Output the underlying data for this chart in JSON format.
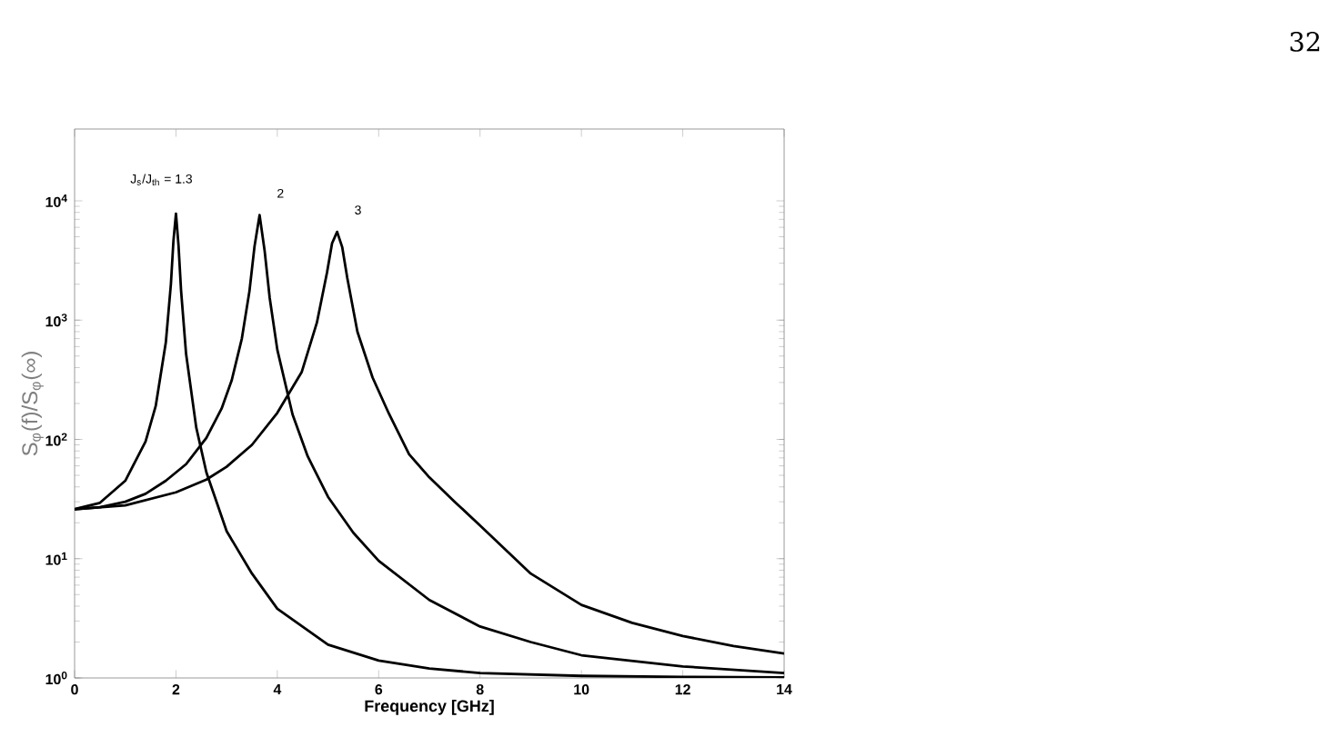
{
  "chart_data": {
    "type": "line",
    "xlabel": "Frequency [GHz]",
    "ylabel": "S$_{φ}$(f)/S$_{φ}$(∞)",
    "log": "y",
    "xlim": [
      0,
      14
    ],
    "xticks": [
      0,
      2,
      4,
      6,
      8,
      10,
      12,
      14
    ],
    "ylim": [
      1,
      40000
    ],
    "yticks": [
      {
        "value": 1,
        "label": "10$^{0}$"
      },
      {
        "value": 10,
        "label": "10$^{1}$"
      },
      {
        "value": 100,
        "label": "10$^{2}$"
      },
      {
        "value": 1000,
        "label": "10$^{3}$"
      },
      {
        "value": 10000,
        "label": "10$^{4}$"
      }
    ],
    "series": [
      {
        "name": "J$_{s}$/J$_{th}$ = 1.3",
        "color": "#000000",
        "x": [
          0,
          0.5,
          1.0,
          1.4,
          1.6,
          1.8,
          1.9,
          1.95,
          2.0,
          2.05,
          2.1,
          2.2,
          2.4,
          2.6,
          3.0,
          3.5,
          4,
          5,
          6,
          7,
          8,
          10,
          12,
          14
        ],
        "values": [
          26,
          29.4,
          45,
          96,
          190,
          650,
          2000,
          4600,
          7800,
          4250,
          1790,
          520,
          126,
          53,
          17,
          7.5,
          3.8,
          1.9,
          1.4,
          1.2,
          1.1,
          1.04,
          1.02,
          1.01
        ]
      },
      {
        "name": "2",
        "color": "#000000",
        "x": [
          0,
          0.5,
          1.0,
          1.4,
          1.8,
          2.2,
          2.6,
          2.9,
          3.1,
          3.3,
          3.45,
          3.55,
          3.65,
          3.75,
          3.85,
          4.0,
          4.3,
          4.6,
          5.0,
          5.5,
          6,
          7,
          8,
          9,
          10,
          12,
          14
        ],
        "values": [
          26,
          27,
          30,
          35,
          45,
          62,
          103,
          181,
          313,
          700,
          1750,
          4150,
          7600,
          3800,
          1530,
          564,
          162,
          72,
          33,
          16.5,
          9.6,
          4.5,
          2.7,
          2.0,
          1.55,
          1.25,
          1.1
        ]
      },
      {
        "name": "3",
        "color": "#000000",
        "x": [
          0,
          1,
          2,
          2.6,
          3,
          3.5,
          4,
          4.48,
          4.78,
          4.98,
          5.08,
          5.18,
          5.28,
          5.38,
          5.58,
          5.88,
          6.2,
          6.6,
          7,
          7.5,
          8,
          9,
          10,
          11,
          12,
          13,
          14
        ],
        "values": [
          26,
          28,
          36,
          46,
          59,
          90,
          167,
          366,
          950,
          2500,
          4400,
          5500,
          4100,
          2260,
          800,
          330,
          165,
          75,
          48,
          30,
          19,
          7.5,
          4.1,
          2.9,
          2.25,
          1.85,
          1.6
        ]
      }
    ],
    "annotations": [
      "32"
    ]
  }
}
